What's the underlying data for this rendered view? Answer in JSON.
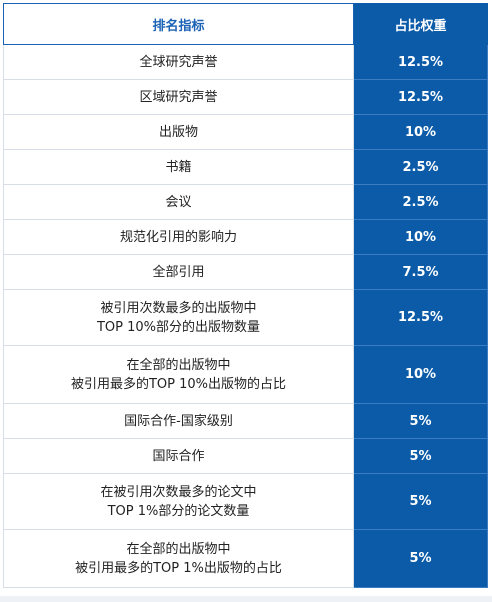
{
  "table": {
    "headers": [
      "排名指标",
      "占比权重"
    ],
    "rows": [
      {
        "name_lines": [
          "全球研究声誉"
        ],
        "weight": "12.5%"
      },
      {
        "name_lines": [
          "区域研究声誉"
        ],
        "weight": "12.5%"
      },
      {
        "name_lines": [
          "出版物"
        ],
        "weight": "10%"
      },
      {
        "name_lines": [
          "书籍"
        ],
        "weight": "2.5%"
      },
      {
        "name_lines": [
          "会议"
        ],
        "weight": "2.5%"
      },
      {
        "name_lines": [
          "规范化引用的影响力"
        ],
        "weight": "10%"
      },
      {
        "name_lines": [
          "全部引用"
        ],
        "weight": "7.5%"
      },
      {
        "name_lines": [
          "被引用次数最多的出版物中",
          "TOP 10%部分的出版物数量"
        ],
        "weight": "12.5%"
      },
      {
        "name_lines": [
          "在全部的出版物中",
          "被引用最多的TOP 10%出版物的占比"
        ],
        "weight": "10%"
      },
      {
        "name_lines": [
          "国际合作-国家级别"
        ],
        "weight": "5%"
      },
      {
        "name_lines": [
          "国际合作"
        ],
        "weight": "5%"
      },
      {
        "name_lines": [
          "在被引用次数最多的论文中",
          "TOP 1%部分的论文数量"
        ],
        "weight": "5%"
      },
      {
        "name_lines": [
          "在全部的出版物中",
          "被引用最多的TOP 1%出版物的占比"
        ],
        "weight": "5%"
      }
    ]
  },
  "colors": {
    "accent_blue": "#0b5ba8",
    "header_text_blue": "#1c63b6",
    "border": "#d7dee8"
  }
}
